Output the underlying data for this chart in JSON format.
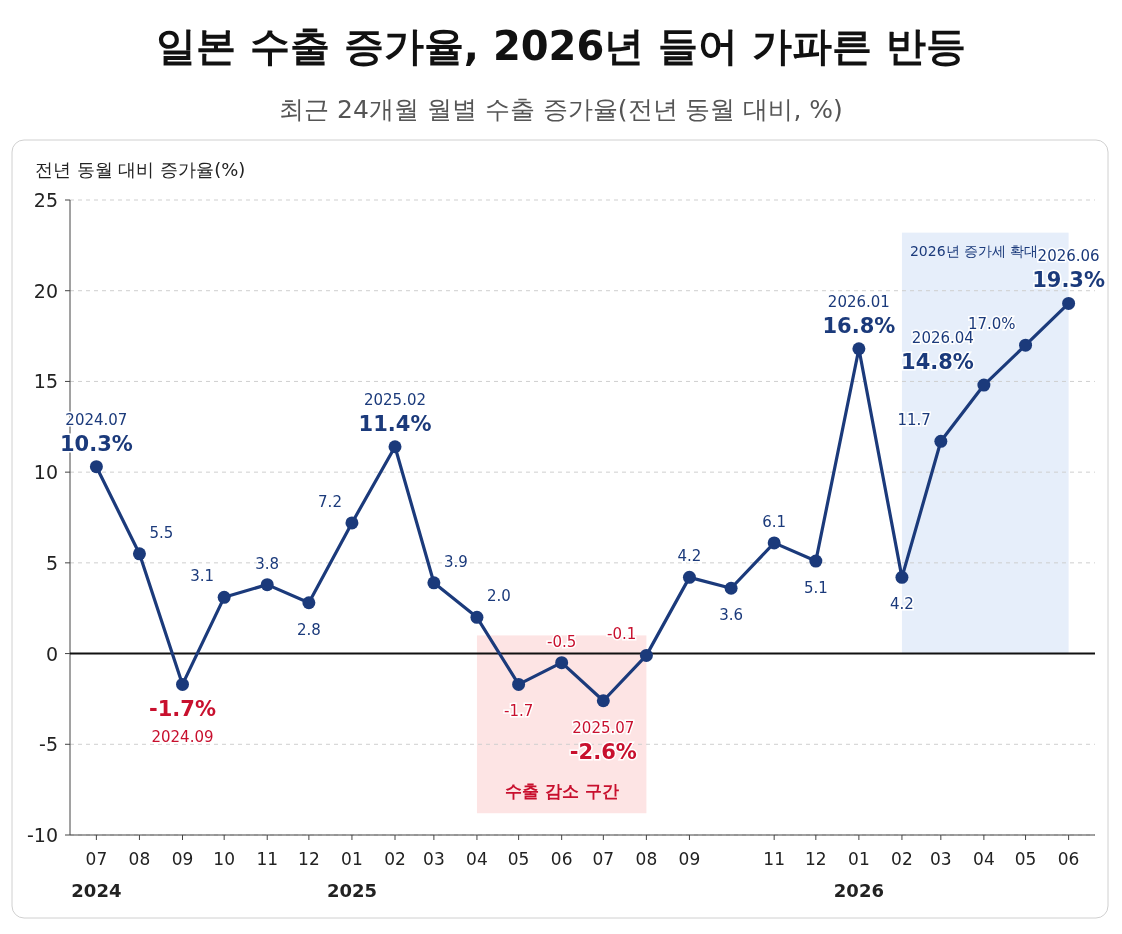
{
  "chart_data": {
    "type": "line",
    "title": "일본 수출 증가율, 2026년 들어 가파른 반등",
    "subtitle": "최근 24개월 월별 수출 증가율(전년 동월 대비, %)",
    "ylabel": "전년 동월 대비 증가율(%)",
    "x": [
      "2024-07",
      "2024-08",
      "2024-09",
      "2024-10",
      "2024-11",
      "2024-12",
      "2025-01",
      "2025-02",
      "2025-03",
      "2025-04",
      "2025-05",
      "2025-06",
      "2025-07",
      "2025-08",
      "2025-09",
      "2025-10",
      "2025-11",
      "2025-12",
      "2026-01",
      "2026-02",
      "2026-03",
      "2026-04",
      "2026-05",
      "2026-06"
    ],
    "series": [
      {
        "color": "#1b3a7b",
        "values": [
          10.3,
          5.5,
          -1.7,
          3.1,
          3.8,
          2.8,
          7.2,
          11.4,
          3.9,
          2.0,
          -1.7,
          -0.5,
          -2.6,
          -0.1,
          4.2,
          3.6,
          6.1,
          5.1,
          16.8,
          4.2,
          11.7,
          14.8,
          17.0,
          19.3
        ],
        "value_labels": [
          "2024.07\n10.3%",
          "5.5",
          "-1.7%\n2024.09",
          "3.1",
          "3.8",
          "2.8",
          "7.2",
          "2025.02\n11.4%",
          "3.9",
          "2.0",
          "-1.7",
          "-0.5",
          "2025.07\n-2.6%",
          "-0.1",
          "4.2",
          "3.6",
          "6.1",
          "5.1",
          "2026.01\n16.8%",
          "4.2",
          "11.7",
          "2026.04\n14.8%",
          "17.0%",
          "2026.06\n19.3%"
        ]
      }
    ],
    "xlim": [
      "2024-06-12",
      "2026-06-20"
    ],
    "xticks": [
      {
        "value": "2024-07",
        "label": "07\n2024"
      },
      {
        "value": "2024-08",
        "label": "08"
      },
      {
        "value": "2024-09",
        "label": "09"
      },
      {
        "value": "2024-10",
        "label": "10"
      },
      {
        "value": "2024-11",
        "label": "11"
      },
      {
        "value": "2024-12",
        "label": "12"
      },
      {
        "value": "2025-01",
        "label": "01\n2025"
      },
      {
        "value": "2025-02",
        "label": "02"
      },
      {
        "value": "2025-03",
        "label": "03"
      },
      {
        "value": "2025-04",
        "label": "04"
      },
      {
        "value": "2025-05",
        "label": "05"
      },
      {
        "value": "2025-06",
        "label": "06"
      },
      {
        "value": "2025-07",
        "label": "07"
      },
      {
        "value": "2025-08",
        "label": "08"
      },
      {
        "value": "2025-09",
        "label": "09"
      },
      {
        "value": "2025-11",
        "label": "11"
      },
      {
        "value": "2025-12",
        "label": "12"
      },
      {
        "value": "2026-01",
        "label": "01\n2026"
      },
      {
        "value": "2026-02",
        "label": "02"
      },
      {
        "value": "2026-03",
        "label": "03"
      },
      {
        "value": "2026-04",
        "label": "04"
      },
      {
        "value": "2026-05",
        "label": "05"
      },
      {
        "value": "2026-06",
        "label": "06"
      }
    ],
    "ylim": [
      -10,
      25
    ],
    "yticks": [
      -10,
      -5,
      0,
      5,
      10,
      15,
      20,
      25
    ],
    "grid": "y",
    "marker": "circle",
    "line_style": "solid",
    "ref_lines": [
      {
        "axis": "y",
        "value": 0,
        "color": "#111111"
      }
    ],
    "bands": [
      {
        "axis": "x",
        "from": "2025-04",
        "to": "2025-08",
        "label": "수출 감소 구간",
        "color": "#fde4e4"
      },
      {
        "axis": "x",
        "from": "2026-02",
        "to": "2026-06",
        "label": "2026년 증가세 확대",
        "color": "#e6eefa"
      }
    ]
  }
}
